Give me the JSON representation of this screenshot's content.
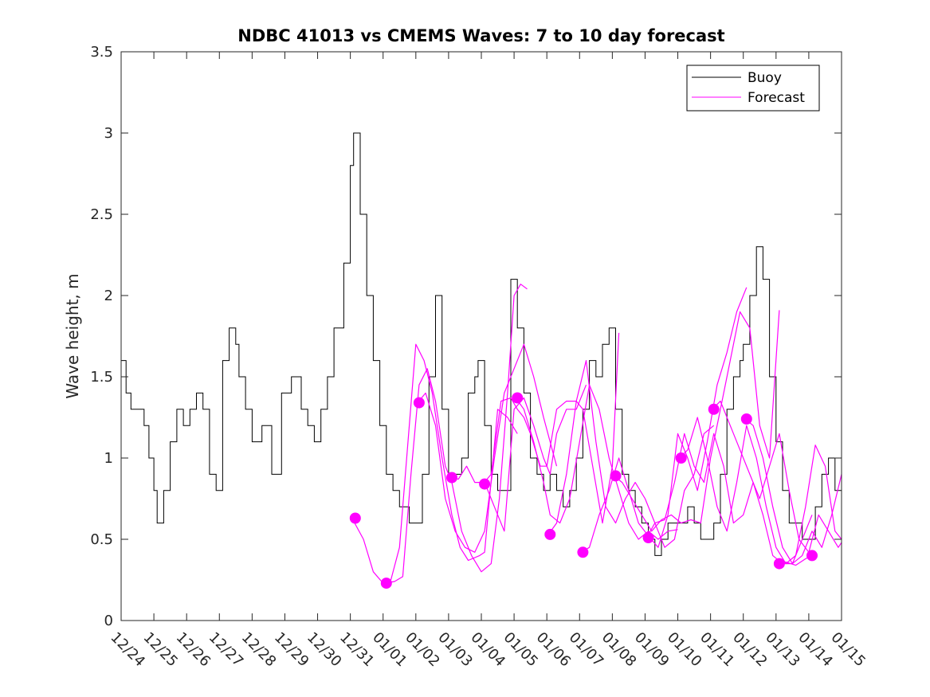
{
  "chart_data": {
    "type": "line",
    "title": "NDBC 41013 vs CMEMS Waves: 7 to 10 day forecast",
    "xlabel": "",
    "ylabel": "Wave height, m",
    "xlim": [
      0,
      22
    ],
    "ylim": [
      0,
      3.5
    ],
    "yticks": [
      0,
      0.5,
      1,
      1.5,
      2,
      2.5,
      3,
      3.5
    ],
    "ytick_labels": [
      "0",
      "0.5",
      "1",
      "1.5",
      "2",
      "2.5",
      "3",
      "3.5"
    ],
    "xtick_labels": [
      "12/24",
      "12/25",
      "12/26",
      "12/27",
      "12/28",
      "12/29",
      "12/30",
      "12/31",
      "01/01",
      "01/02",
      "01/03",
      "01/04",
      "01/05",
      "01/06",
      "01/07",
      "01/08",
      "01/09",
      "01/10",
      "01/11",
      "01/12",
      "01/13",
      "01/14",
      "01/15"
    ],
    "legend": {
      "position": "top-right",
      "entries": [
        "Buoy",
        "Forecast"
      ]
    },
    "colors": {
      "buoy": "#000000",
      "forecast": "#ff00ff"
    },
    "buoy": {
      "name": "Buoy",
      "x": [
        0,
        0.15,
        0.3,
        0.5,
        0.7,
        0.85,
        1.0,
        1.1,
        1.3,
        1.5,
        1.7,
        1.9,
        2.1,
        2.3,
        2.5,
        2.7,
        2.9,
        3.1,
        3.3,
        3.5,
        3.6,
        3.8,
        4.0,
        4.3,
        4.6,
        4.9,
        5.2,
        5.5,
        5.7,
        5.9,
        6.1,
        6.3,
        6.5,
        6.8,
        7.0,
        7.1,
        7.3,
        7.5,
        7.7,
        7.9,
        8.1,
        8.3,
        8.5,
        8.6,
        8.8,
        9.0,
        9.2,
        9.4,
        9.6,
        9.8,
        10.0,
        10.2,
        10.4,
        10.6,
        10.8,
        10.9,
        11.1,
        11.3,
        11.5,
        11.7,
        11.9,
        12.1,
        12.3,
        12.5,
        12.7,
        12.9,
        13.1,
        13.3,
        13.5,
        13.7,
        13.9,
        14.1,
        14.3,
        14.5,
        14.7,
        14.9,
        15.1,
        15.3,
        15.5,
        15.7,
        15.9,
        16.1,
        16.3,
        16.5,
        16.7,
        16.9,
        17.1,
        17.3,
        17.5,
        17.7,
        17.9,
        18.1,
        18.3,
        18.5,
        18.7,
        18.9,
        19.0,
        19.2,
        19.4,
        19.6,
        19.8,
        20.0,
        20.2,
        20.4,
        20.6,
        20.8,
        21.0,
        21.2,
        21.4,
        21.6,
        21.8,
        22.0
      ],
      "values": [
        1.6,
        1.4,
        1.3,
        1.3,
        1.2,
        1.0,
        0.8,
        0.6,
        0.8,
        1.1,
        1.3,
        1.2,
        1.3,
        1.4,
        1.3,
        0.9,
        0.8,
        1.6,
        1.8,
        1.7,
        1.5,
        1.3,
        1.1,
        1.2,
        0.9,
        1.4,
        1.5,
        1.3,
        1.2,
        1.1,
        1.3,
        1.5,
        1.8,
        2.2,
        2.8,
        3.0,
        2.5,
        2.0,
        1.6,
        1.2,
        0.9,
        0.8,
        0.7,
        0.7,
        0.6,
        0.6,
        0.9,
        1.5,
        2.0,
        1.3,
        0.9,
        0.9,
        1.0,
        1.4,
        1.5,
        1.6,
        1.2,
        0.9,
        0.8,
        0.8,
        2.1,
        1.8,
        1.4,
        1.0,
        0.9,
        0.8,
        0.9,
        0.8,
        0.7,
        0.8,
        1.0,
        1.3,
        1.6,
        1.5,
        1.7,
        1.8,
        1.3,
        0.9,
        0.8,
        0.7,
        0.6,
        0.5,
        0.4,
        0.5,
        0.6,
        0.6,
        0.6,
        0.7,
        0.6,
        0.5,
        0.5,
        0.6,
        0.9,
        1.3,
        1.5,
        1.6,
        1.7,
        2.0,
        2.3,
        2.1,
        1.5,
        1.1,
        0.8,
        0.6,
        0.6,
        0.5,
        0.5,
        0.7,
        0.9,
        1.0,
        0.8,
        0.7
      ]
    },
    "forecast_runs": [
      {
        "name": "Forecast",
        "x": [
          7.05,
          7.4,
          7.7,
          8.0,
          8.2,
          8.5,
          8.8,
          9.0,
          9.25,
          9.5,
          9.8,
          10.1,
          10.35,
          10.6,
          10.95,
          11.1,
          11.5,
          11.8,
          12.1
        ],
        "values": [
          0.63,
          0.5,
          0.3,
          0.23,
          0.22,
          0.45,
          1.2,
          1.7,
          1.6,
          1.4,
          1.0,
          0.65,
          0.45,
          0.37,
          0.4,
          0.42,
          1.3,
          1.25,
          1.15
        ]
      },
      {
        "name": "Forecast",
        "x": [
          8.05,
          8.35,
          8.6,
          8.85,
          9.1,
          9.35,
          9.6,
          9.9,
          10.1,
          10.4,
          10.7,
          11.0,
          11.3,
          11.55,
          11.8,
          12.0,
          12.2,
          12.4
        ],
        "values": [
          0.23,
          0.24,
          0.27,
          0.9,
          1.45,
          1.55,
          1.35,
          0.95,
          0.85,
          0.55,
          0.4,
          0.3,
          0.35,
          0.75,
          1.4,
          2.0,
          2.07,
          2.04
        ]
      },
      {
        "name": "Forecast",
        "x": [
          9.05,
          9.3,
          9.6,
          9.9,
          10.2,
          10.5,
          10.8,
          11.1,
          11.4,
          11.7,
          12.0,
          12.3,
          12.6,
          12.9,
          13.1,
          13.3
        ],
        "values": [
          1.34,
          1.4,
          1.2,
          0.75,
          0.55,
          0.45,
          0.42,
          0.55,
          1.0,
          1.4,
          1.55,
          1.7,
          1.5,
          1.25,
          1.1,
          0.95
        ]
      },
      {
        "name": "Forecast",
        "x": [
          10.05,
          10.3,
          10.55,
          10.8,
          11.1,
          11.4,
          11.7,
          12.0,
          12.3,
          12.6,
          12.9,
          13.1,
          13.3,
          13.6,
          13.9,
          14.2
        ],
        "values": [
          0.88,
          0.87,
          0.95,
          0.85,
          0.85,
          0.7,
          0.55,
          1.3,
          1.37,
          1.2,
          1.0,
          0.9,
          1.15,
          1.3,
          1.3,
          1.45
        ]
      },
      {
        "name": "Forecast",
        "x": [
          11.05,
          11.3,
          11.6,
          11.9,
          12.1,
          12.3,
          12.5,
          12.8,
          13.0,
          13.3,
          13.6,
          13.9,
          14.1,
          14.4,
          14.7,
          15.0,
          15.2
        ],
        "values": [
          0.84,
          0.9,
          1.35,
          1.37,
          1.3,
          1.25,
          1.15,
          0.95,
          0.95,
          1.3,
          1.35,
          1.35,
          1.3,
          0.95,
          0.6,
          0.95,
          1.77
        ]
      },
      {
        "name": "Forecast",
        "x": [
          12.05,
          12.3,
          12.6,
          12.9,
          13.1,
          13.4,
          13.7,
          14.0,
          14.3,
          14.6,
          14.9,
          15.2,
          15.5,
          15.8,
          16.1,
          16.4,
          16.7,
          17.0
        ],
        "values": [
          1.37,
          1.3,
          1.1,
          0.85,
          0.65,
          0.6,
          0.75,
          1.1,
          1.45,
          1.3,
          1.0,
          0.8,
          0.6,
          0.5,
          0.55,
          0.5,
          0.55,
          0.56
        ]
      },
      {
        "name": "Forecast",
        "x": [
          13.05,
          13.3,
          13.6,
          13.9,
          14.2,
          14.5,
          14.8,
          15.1,
          15.4,
          15.7,
          16.0,
          16.3,
          16.6,
          16.9,
          17.2,
          17.5,
          17.8,
          18.1
        ],
        "values": [
          0.53,
          0.6,
          0.9,
          1.35,
          1.6,
          1.1,
          0.7,
          0.6,
          0.75,
          0.85,
          0.75,
          0.6,
          0.45,
          0.5,
          0.8,
          0.9,
          1.15,
          1.2
        ]
      },
      {
        "name": "Forecast",
        "x": [
          14.05,
          14.3,
          14.6,
          14.9,
          15.2,
          15.5,
          15.8,
          16.1,
          16.4,
          16.7,
          17.0,
          17.3,
          17.6,
          17.9,
          18.2,
          18.5,
          18.8,
          19.1
        ],
        "values": [
          0.42,
          0.45,
          0.65,
          0.8,
          1.0,
          0.8,
          0.6,
          0.52,
          0.45,
          0.65,
          1.15,
          1.0,
          0.8,
          1.1,
          1.45,
          1.65,
          1.9,
          2.05
        ]
      },
      {
        "name": "Forecast",
        "x": [
          15.05,
          15.3,
          15.6,
          15.9,
          16.2,
          16.5,
          16.8,
          17.1,
          17.4,
          17.7,
          18.0,
          18.3,
          18.6,
          18.9,
          19.2,
          19.5,
          19.8,
          20.1
        ],
        "values": [
          0.89,
          0.85,
          0.75,
          0.65,
          0.55,
          0.62,
          0.65,
          0.6,
          0.62,
          0.6,
          1.0,
          1.3,
          1.6,
          1.9,
          1.8,
          1.2,
          1.0,
          1.91
        ]
      },
      {
        "name": "Forecast",
        "x": [
          16.05,
          16.3,
          16.6,
          16.9,
          17.2,
          17.5,
          17.8,
          18.1,
          18.4,
          18.7,
          19.0,
          19.3,
          19.6,
          19.9,
          20.2,
          20.5,
          20.8,
          21.1
        ],
        "values": [
          0.51,
          0.6,
          0.62,
          0.85,
          1.15,
          0.95,
          0.85,
          1.15,
          0.95,
          0.6,
          0.65,
          0.85,
          0.65,
          0.4,
          0.35,
          0.35,
          0.5,
          0.65
        ]
      },
      {
        "name": "Forecast",
        "x": [
          17.05,
          17.3,
          17.6,
          17.9,
          18.2,
          18.5,
          18.8,
          19.1,
          19.4,
          19.7,
          20.0,
          20.3,
          20.6,
          20.9,
          21.2,
          21.5,
          21.8,
          22.0
        ],
        "values": [
          1.0,
          1.05,
          1.25,
          1.0,
          0.7,
          0.55,
          0.85,
          1.2,
          1.0,
          0.7,
          0.45,
          0.35,
          0.4,
          0.7,
          1.08,
          0.95,
          0.55,
          0.5
        ]
      },
      {
        "name": "Forecast",
        "x": [
          18.05,
          18.3,
          18.6,
          18.9,
          19.2,
          19.5,
          19.8,
          20.1,
          20.4,
          20.7,
          21.0,
          21.3,
          21.6,
          21.9,
          22.0
        ],
        "values": [
          1.3,
          1.35,
          1.2,
          1.05,
          0.9,
          0.75,
          0.95,
          1.15,
          0.8,
          0.5,
          0.42,
          0.65,
          0.55,
          0.45,
          0.48
        ]
      },
      {
        "name": "Forecast",
        "x": [
          19.05,
          19.3,
          19.6,
          19.9,
          20.2,
          20.5,
          20.8,
          21.1,
          21.4,
          21.7,
          22.0
        ],
        "values": [
          1.24,
          1.2,
          1.0,
          0.7,
          0.45,
          0.35,
          0.4,
          0.55,
          0.45,
          0.65,
          0.9
        ]
      },
      {
        "name": "Forecast",
        "x": [
          20.05,
          20.3,
          20.6,
          20.9,
          21.1
        ],
        "values": [
          0.35,
          0.36,
          0.34,
          0.38,
          0.4
        ]
      }
    ],
    "forecast_markers": {
      "x": [
        7.15,
        8.1,
        9.1,
        10.1,
        11.1,
        12.1,
        13.1,
        14.1,
        15.1,
        16.1,
        17.1,
        18.1,
        19.1,
        20.1,
        21.1
      ],
      "values": [
        0.63,
        0.23,
        1.34,
        0.88,
        0.84,
        1.37,
        0.53,
        0.42,
        0.89,
        0.51,
        1.0,
        1.3,
        1.24,
        0.35,
        0.4
      ]
    }
  }
}
